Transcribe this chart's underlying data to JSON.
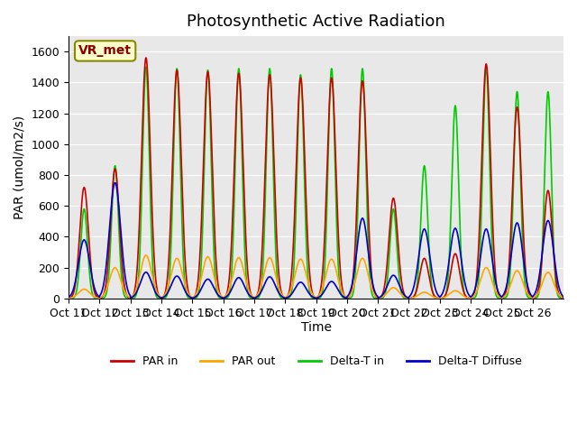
{
  "title": "Photosynthetic Active Radiation",
  "ylabel": "PAR (umol/m2/s)",
  "xlabel": "Time",
  "annotation": "VR_met",
  "bg_color": "#e8e8e8",
  "ylim": [
    0,
    1700
  ],
  "yticks": [
    0,
    200,
    400,
    600,
    800,
    1000,
    1200,
    1400,
    1600
  ],
  "xtick_labels": [
    "Oct 11",
    "Oct 12",
    "Oct 13",
    "Oct 14",
    "Oct 15",
    "Oct 16",
    "Oct 17",
    "Oct 18",
    "Oct 19",
    "Oct 20",
    "Oct 21",
    "Oct 22",
    "Oct 23",
    "Oct 24",
    "Oct 25",
    "Oct 26"
  ],
  "legend_entries": [
    "PAR in",
    "PAR out",
    "Delta-T in",
    "Delta-T Diffuse"
  ],
  "legend_colors": [
    "#cc0000",
    "#ffa500",
    "#00cc00",
    "#0000cc"
  ],
  "line_width": 1.2,
  "n_days": 16,
  "day_peaks_par_in": [
    720,
    840,
    1560,
    1480,
    1470,
    1460,
    1450,
    1430,
    1430,
    1410,
    650,
    260,
    290,
    1520,
    1240,
    700
  ],
  "day_peaks_par_out": [
    60,
    200,
    280,
    260,
    270,
    265,
    265,
    255,
    255,
    260,
    70,
    40,
    50,
    200,
    180,
    170
  ],
  "day_peaks_delta_in": [
    580,
    860,
    1500,
    1490,
    1480,
    1490,
    1490,
    1450,
    1490,
    1490,
    580,
    860,
    1250,
    1500,
    1340,
    1340
  ],
  "day_peaks_delta_diffuse": [
    380,
    750,
    170,
    145,
    125,
    135,
    140,
    105,
    110,
    520,
    150,
    450,
    455,
    450,
    490,
    505
  ],
  "title_fontsize": 13,
  "label_fontsize": 10,
  "tick_fontsize": 9
}
